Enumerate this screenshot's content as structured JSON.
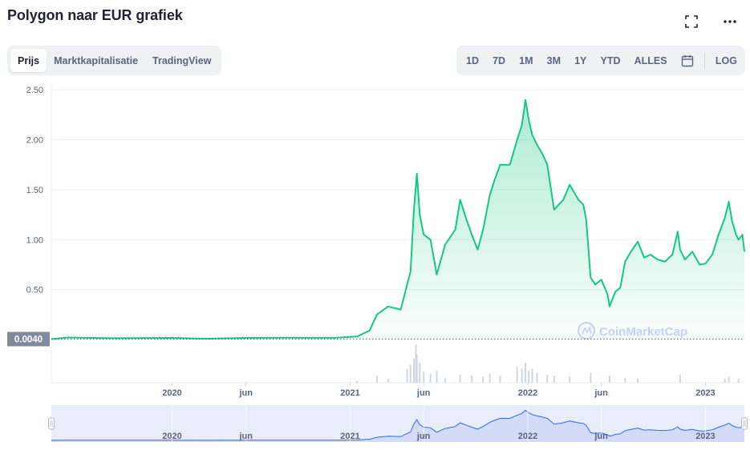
{
  "header": {
    "title": "Polygon naar EUR grafiek",
    "fullscreen_icon": "fullscreen-icon",
    "more_icon": "more-options-icon"
  },
  "tabs": [
    {
      "label": "Prijs",
      "active": true
    },
    {
      "label": "Marktkapitalisatie",
      "active": false
    },
    {
      "label": "TradingView",
      "active": false
    }
  ],
  "ranges": {
    "items": [
      "1D",
      "7D",
      "1M",
      "3M",
      "1Y",
      "YTD",
      "ALLES"
    ],
    "calendar_icon": "calendar-icon",
    "log_label": "LOG"
  },
  "colors": {
    "line": "#16c784",
    "volume": "#cfd6e4",
    "navigator_fill": "#e8edfb",
    "navigator_line": "#3861fb",
    "current_price_label_bg": "#808a9d"
  },
  "chart_data": {
    "type": "line",
    "currency": "EUR",
    "current_price_label": "0.0040",
    "watermark": "CoinMarketCap",
    "x_range": [
      "2019-04-28",
      "2023-03-22"
    ],
    "ylim": [
      0,
      2.55
    ],
    "yticks": [
      "0.50",
      "1.00",
      "1.50",
      "2.00",
      "2.50"
    ],
    "xticks": [
      {
        "date": "2020-01-01",
        "label": "2020"
      },
      {
        "date": "2020-06-01",
        "label": "jun"
      },
      {
        "date": "2021-01-01",
        "label": "2021"
      },
      {
        "date": "2021-06-01",
        "label": "jun"
      },
      {
        "date": "2022-01-01",
        "label": "2022"
      },
      {
        "date": "2022-06-01",
        "label": "jun"
      },
      {
        "date": "2023-01-01",
        "label": "2023"
      }
    ],
    "grid": true,
    "series": [
      {
        "points": [
          [
            "2019-04-28",
            0.004
          ],
          [
            "2019-06-01",
            0.02
          ],
          [
            "2019-09-01",
            0.013
          ],
          [
            "2019-12-01",
            0.015
          ],
          [
            "2020-01-01",
            0.016
          ],
          [
            "2020-03-12",
            0.008
          ],
          [
            "2020-06-01",
            0.016
          ],
          [
            "2020-09-01",
            0.018
          ],
          [
            "2020-12-01",
            0.017
          ],
          [
            "2021-01-15",
            0.03
          ],
          [
            "2021-02-10",
            0.09
          ],
          [
            "2021-02-25",
            0.25
          ],
          [
            "2021-03-20",
            0.33
          ],
          [
            "2021-04-15",
            0.3
          ],
          [
            "2021-04-28",
            0.55
          ],
          [
            "2021-05-05",
            0.68
          ],
          [
            "2021-05-12",
            1.3
          ],
          [
            "2021-05-18",
            1.66
          ],
          [
            "2021-05-24",
            1.25
          ],
          [
            "2021-06-01",
            1.05
          ],
          [
            "2021-06-15",
            1.0
          ],
          [
            "2021-06-28",
            0.65
          ],
          [
            "2021-07-15",
            0.95
          ],
          [
            "2021-08-05",
            1.1
          ],
          [
            "2021-08-15",
            1.4
          ],
          [
            "2021-08-28",
            1.2
          ],
          [
            "2021-09-08",
            1.05
          ],
          [
            "2021-09-20",
            0.9
          ],
          [
            "2021-10-01",
            1.1
          ],
          [
            "2021-10-15",
            1.45
          ],
          [
            "2021-10-25",
            1.6
          ],
          [
            "2021-11-05",
            1.75
          ],
          [
            "2021-11-25",
            1.75
          ],
          [
            "2021-12-10",
            2.0
          ],
          [
            "2021-12-20",
            2.15
          ],
          [
            "2021-12-27",
            2.4
          ],
          [
            "2022-01-03",
            2.2
          ],
          [
            "2022-01-10",
            2.05
          ],
          [
            "2022-01-20",
            1.95
          ],
          [
            "2022-02-01",
            1.85
          ],
          [
            "2022-02-10",
            1.75
          ],
          [
            "2022-02-24",
            1.3
          ],
          [
            "2022-03-15",
            1.4
          ],
          [
            "2022-03-28",
            1.55
          ],
          [
            "2022-04-15",
            1.4
          ],
          [
            "2022-04-25",
            1.35
          ],
          [
            "2022-05-01",
            1.2
          ],
          [
            "2022-05-10",
            0.62
          ],
          [
            "2022-05-20",
            0.55
          ],
          [
            "2022-06-01",
            0.6
          ],
          [
            "2022-06-14",
            0.45
          ],
          [
            "2022-06-18",
            0.33
          ],
          [
            "2022-06-30",
            0.48
          ],
          [
            "2022-07-10",
            0.52
          ],
          [
            "2022-07-20",
            0.78
          ],
          [
            "2022-08-01",
            0.88
          ],
          [
            "2022-08-15",
            0.98
          ],
          [
            "2022-08-28",
            0.82
          ],
          [
            "2022-09-10",
            0.85
          ],
          [
            "2022-09-25",
            0.8
          ],
          [
            "2022-10-10",
            0.78
          ],
          [
            "2022-10-25",
            0.85
          ],
          [
            "2022-11-05",
            1.08
          ],
          [
            "2022-11-10",
            0.9
          ],
          [
            "2022-11-20",
            0.8
          ],
          [
            "2022-12-05",
            0.88
          ],
          [
            "2022-12-20",
            0.75
          ],
          [
            "2023-01-01",
            0.76
          ],
          [
            "2023-01-15",
            0.85
          ],
          [
            "2023-01-28",
            1.05
          ],
          [
            "2023-02-10",
            1.22
          ],
          [
            "2023-02-18",
            1.38
          ],
          [
            "2023-02-25",
            1.18
          ],
          [
            "2023-03-05",
            1.05
          ],
          [
            "2023-03-10",
            1.0
          ],
          [
            "2023-03-18",
            1.05
          ],
          [
            "2023-03-22",
            0.88
          ]
        ]
      }
    ],
    "volume": [
      [
        "2020-06-01",
        0.02
      ],
      [
        "2021-01-15",
        0.05
      ],
      [
        "2021-02-25",
        0.18
      ],
      [
        "2021-03-20",
        0.1
      ],
      [
        "2021-04-28",
        0.35
      ],
      [
        "2021-05-05",
        0.45
      ],
      [
        "2021-05-12",
        0.6
      ],
      [
        "2021-05-16",
        0.95
      ],
      [
        "2021-05-18",
        0.7
      ],
      [
        "2021-05-24",
        0.5
      ],
      [
        "2021-06-01",
        0.28
      ],
      [
        "2021-06-15",
        0.22
      ],
      [
        "2021-06-28",
        0.3
      ],
      [
        "2021-07-15",
        0.12
      ],
      [
        "2021-08-15",
        0.2
      ],
      [
        "2021-09-08",
        0.18
      ],
      [
        "2021-10-01",
        0.15
      ],
      [
        "2021-10-15",
        0.22
      ],
      [
        "2021-11-05",
        0.18
      ],
      [
        "2021-12-10",
        0.4
      ],
      [
        "2021-12-20",
        0.35
      ],
      [
        "2021-12-27",
        0.5
      ],
      [
        "2022-01-03",
        0.3
      ],
      [
        "2022-01-10",
        0.35
      ],
      [
        "2022-01-20",
        0.25
      ],
      [
        "2022-02-10",
        0.2
      ],
      [
        "2022-02-24",
        0.18
      ],
      [
        "2022-03-28",
        0.15
      ],
      [
        "2022-05-10",
        0.25
      ],
      [
        "2022-06-18",
        0.18
      ],
      [
        "2022-07-20",
        0.12
      ],
      [
        "2022-08-15",
        0.1
      ],
      [
        "2022-11-10",
        0.2
      ],
      [
        "2023-02-10",
        0.1
      ],
      [
        "2023-02-18",
        0.15
      ],
      [
        "2023-03-10",
        0.1
      ]
    ]
  }
}
